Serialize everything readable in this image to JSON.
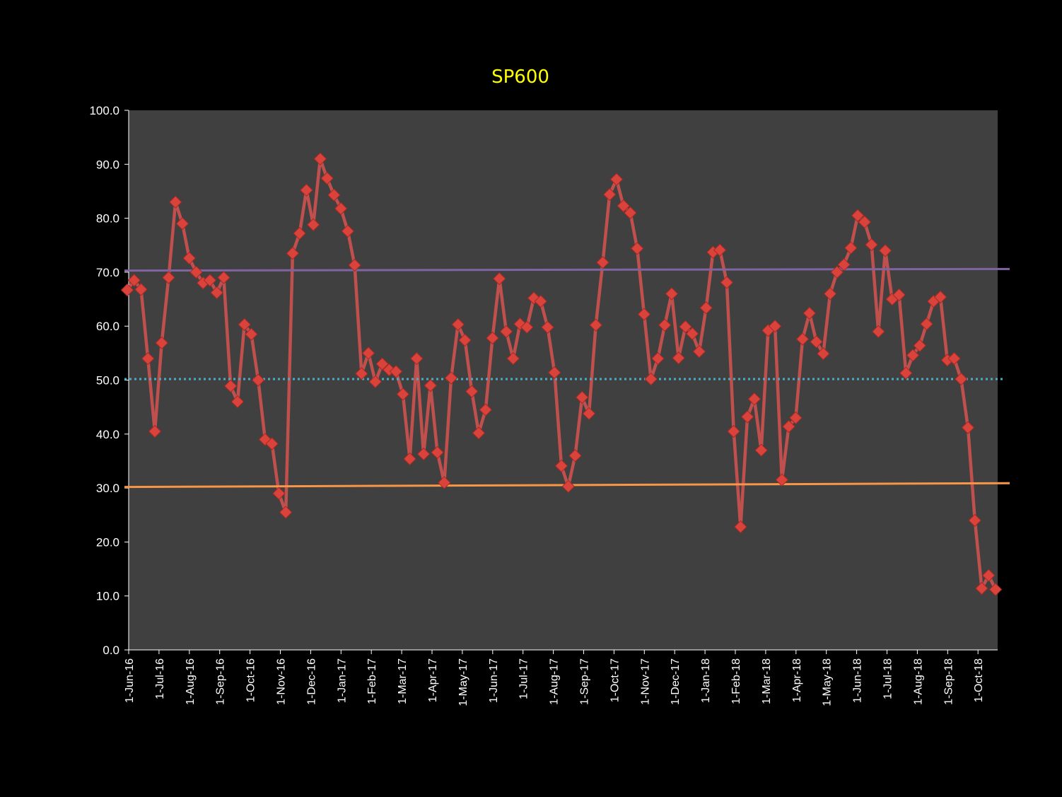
{
  "chart_data": {
    "type": "line",
    "title": "SP600",
    "xlabel": "",
    "ylabel": "",
    "ylim": [
      0,
      100
    ],
    "yticks": [
      "0.0",
      "10.0",
      "20.0",
      "30.0",
      "40.0",
      "50.0",
      "60.0",
      "70.0",
      "80.0",
      "90.0",
      "100.0"
    ],
    "x_tick_labels": [
      "1-Jun-16",
      "1-Jul-16",
      "1-Aug-16",
      "1-Sep-16",
      "1-Oct-16",
      "1-Nov-16",
      "1-Dec-16",
      "1-Jan-17",
      "1-Feb-17",
      "1-Mar-17",
      "1-Apr-17",
      "1-May-17",
      "1-Jun-17",
      "1-Jul-17",
      "1-Aug-17",
      "1-Sep-17",
      "1-Oct-17",
      "1-Nov-17",
      "1-Dec-17",
      "1-Jan-18",
      "1-Feb-18",
      "1-Mar-18",
      "1-Apr-18",
      "1-May-18",
      "1-Jun-18",
      "1-Jul-18",
      "1-Aug-18",
      "1-Sep-18",
      "1-Oct-18"
    ],
    "grid": false,
    "series": [
      {
        "values": [
          66.7,
          68.5,
          66.8,
          54.0,
          40.5,
          56.9,
          69.0,
          83.0,
          79.0,
          72.6,
          70.0,
          68.0,
          68.5,
          66.2,
          69.0,
          48.9,
          46.0,
          60.3,
          58.5,
          50.0,
          39.0,
          38.2,
          29.0,
          25.5,
          73.5,
          77.2,
          85.2,
          78.8,
          91.0,
          87.4,
          84.3,
          81.8,
          77.6,
          71.3,
          51.2,
          55.0,
          49.7,
          53.0,
          51.9,
          51.6,
          47.4,
          35.4,
          54.0,
          36.3,
          49.0,
          36.6,
          31.0,
          50.4,
          60.3,
          57.4,
          47.9,
          40.2,
          44.5,
          57.8,
          68.8,
          59.0,
          54.0,
          60.4,
          59.8,
          65.2,
          64.6,
          59.8,
          51.4,
          34.1,
          30.3,
          36.0,
          46.8,
          43.8,
          60.2,
          71.8,
          84.4,
          87.2,
          82.3,
          81.0,
          74.4,
          62.2,
          50.2,
          54.0,
          60.2,
          66.0,
          54.1,
          59.9,
          58.6,
          55.3,
          63.4,
          73.7,
          74.1,
          68.1,
          40.5,
          22.8,
          43.2,
          46.5,
          37.0,
          59.2,
          60.0,
          31.5,
          41.4,
          43.0,
          57.6,
          62.4,
          57.1,
          54.9,
          66.0,
          70.0,
          71.4,
          74.5,
          80.5,
          79.3,
          75.1,
          59.0,
          74.0,
          65.0,
          65.8,
          51.3,
          54.6,
          56.4,
          60.4,
          64.6,
          65.4,
          53.7,
          54.0,
          50.2,
          41.2,
          24.0,
          11.4,
          13.8,
          11.2
        ],
        "color": "#c0504d"
      }
    ],
    "reference_lines": [
      {
        "start": 70.3,
        "end": 70.6,
        "color": "#8064a2",
        "style": "solid"
      },
      {
        "start": 50.2,
        "end": 50.2,
        "color": "#4bacc6",
        "style": "dotted"
      },
      {
        "start": 30.2,
        "end": 30.9,
        "color": "#f79646",
        "style": "solid"
      }
    ],
    "colors": {
      "background": "#000000",
      "plot_area": "#404040",
      "title": "#ffff00",
      "text": "#ffffff"
    }
  }
}
